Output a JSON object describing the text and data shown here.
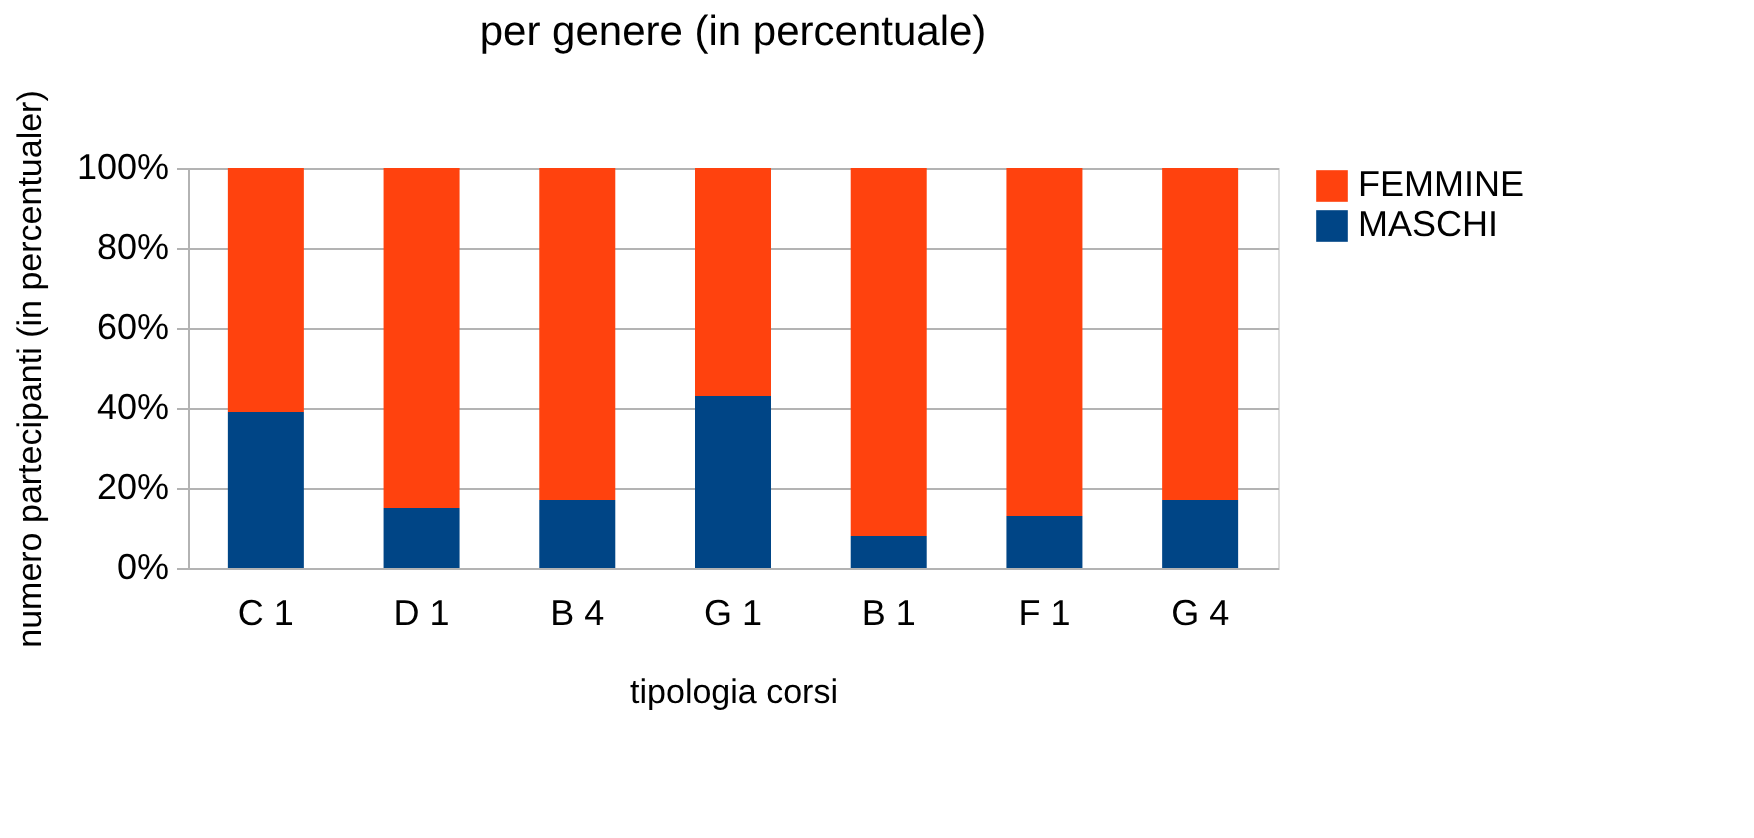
{
  "chart_data": {
    "type": "bar",
    "title": "per genere (in percentuale)",
    "xlabel": "tipologia corsi",
    "ylabel": "numero partecipanti (in percentualer)",
    "categories": [
      "C 1",
      "D 1",
      "B 4",
      "G 1",
      "B 1",
      "F 1",
      "G 4"
    ],
    "series": [
      {
        "name": "MASCHI",
        "color": "#004586",
        "values": [
          39,
          15,
          17,
          43,
          8,
          13,
          17
        ]
      },
      {
        "name": "FEMMINE",
        "color": "#ff420e",
        "values": [
          61,
          85,
          83,
          57,
          92,
          87,
          83
        ]
      }
    ],
    "stacked": true,
    "ylim": [
      0,
      100
    ],
    "yticks": [
      {
        "value": 0,
        "label": "0%"
      },
      {
        "value": 20,
        "label": "20%"
      },
      {
        "value": 40,
        "label": "40%"
      },
      {
        "value": 60,
        "label": "60%"
      },
      {
        "value": 80,
        "label": "80%"
      },
      {
        "value": 100,
        "label": "100%"
      }
    ],
    "grid": "y",
    "legend": "right"
  }
}
